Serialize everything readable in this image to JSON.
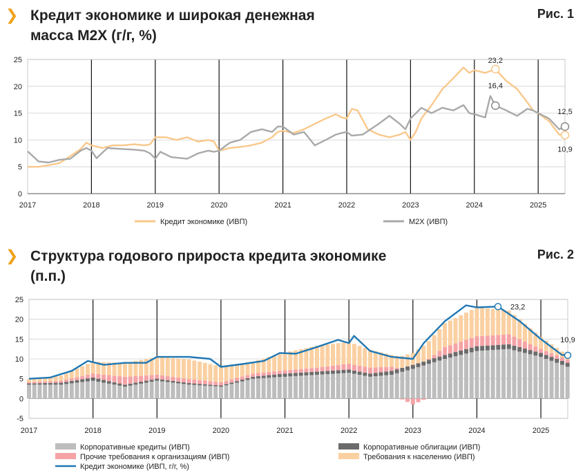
{
  "colors": {
    "credit": "#f9c88b",
    "m2x": "#a9a9a9",
    "corp_loans": "#bdbdbd",
    "corp_bonds": "#6b6b6b",
    "other_claims": "#f6a3a6",
    "household": "#fbd0a1",
    "credit_line": "#1f78b4",
    "accent": "#f0a21a"
  },
  "fig1": {
    "title_line1": "Кредит экономике и широкая денежная",
    "title_line2": "масса M2X (г/г, %)",
    "label": "Рис. 1",
    "legend": {
      "credit": "Кредит экономике (ИВП)",
      "m2x": "M2X (ИВП)"
    },
    "annotations": {
      "credit_peak": "23,2",
      "m2x_peak": "16,4",
      "m2x_last": "12,5",
      "credit_last": "10,9"
    }
  },
  "fig2": {
    "title_line1": "Структура годового прироста кредита экономике",
    "title_line2": "(п.п.)",
    "label": "Рис. 2",
    "legend": {
      "corp_loans": "Корпоративные кредиты (ИВП)",
      "corp_bonds": "Корпоративные облигации (ИВП)",
      "other_claims": "Прочие требования к организациям (ИВП)",
      "household": "Требования к населению (ИВП)",
      "credit_line": "Кредит экономике (ИВП, г/г, %)"
    },
    "annotations": {
      "credit_peak": "23,2",
      "credit_last": "10,9"
    }
  },
  "chart_data": [
    {
      "type": "line",
      "title": "Кредит экономике и широкая денежная масса M2X (г/г, %)",
      "xlabel": "",
      "ylabel": "",
      "ylim": [
        0,
        25
      ],
      "y_ticks": [
        0,
        5,
        10,
        15,
        20,
        25
      ],
      "x_ticks": [
        "2017",
        "2018",
        "2019",
        "2020",
        "2021",
        "2022",
        "2023",
        "2024",
        "2025"
      ],
      "x_range": [
        2017.0,
        2025.42
      ],
      "grid": "horizontal",
      "year_separators": true,
      "legend_position": "bottom",
      "series": [
        {
          "name": "Кредит экономике (ИВП)",
          "points": [
            [
              2017.0,
              5.0
            ],
            [
              2017.17,
              5.0
            ],
            [
              2017.33,
              5.3
            ],
            [
              2017.5,
              5.7
            ],
            [
              2017.67,
              7.0
            ],
            [
              2017.83,
              8.3
            ],
            [
              2017.92,
              9.5
            ],
            [
              2018.0,
              9.0
            ],
            [
              2018.17,
              8.5
            ],
            [
              2018.33,
              9.0
            ],
            [
              2018.5,
              9.0
            ],
            [
              2018.67,
              9.2
            ],
            [
              2018.83,
              9.0
            ],
            [
              2018.92,
              9.2
            ],
            [
              2019.0,
              10.5
            ],
            [
              2019.17,
              10.5
            ],
            [
              2019.33,
              10.0
            ],
            [
              2019.5,
              10.5
            ],
            [
              2019.67,
              9.7
            ],
            [
              2019.83,
              10.0
            ],
            [
              2019.92,
              9.7
            ],
            [
              2020.0,
              8.0
            ],
            [
              2020.17,
              8.5
            ],
            [
              2020.33,
              8.7
            ],
            [
              2020.5,
              9.0
            ],
            [
              2020.67,
              9.5
            ],
            [
              2020.83,
              10.5
            ],
            [
              2020.92,
              11.5
            ],
            [
              2021.0,
              11.7
            ],
            [
              2021.17,
              11.3
            ],
            [
              2021.33,
              12.0
            ],
            [
              2021.5,
              13.0
            ],
            [
              2021.67,
              14.0
            ],
            [
              2021.83,
              14.8
            ],
            [
              2021.92,
              14.2
            ],
            [
              2022.0,
              14.0
            ],
            [
              2022.08,
              15.8
            ],
            [
              2022.17,
              15.5
            ],
            [
              2022.33,
              12.0
            ],
            [
              2022.5,
              11.0
            ],
            [
              2022.67,
              10.5
            ],
            [
              2022.83,
              11.0
            ],
            [
              2022.92,
              11.5
            ],
            [
              2023.0,
              10.0
            ],
            [
              2023.08,
              11.5
            ],
            [
              2023.17,
              14.0
            ],
            [
              2023.33,
              16.5
            ],
            [
              2023.5,
              19.5
            ],
            [
              2023.67,
              21.5
            ],
            [
              2023.83,
              23.5
            ],
            [
              2023.92,
              22.5
            ],
            [
              2024.0,
              23.0
            ],
            [
              2024.17,
              22.5
            ],
            [
              2024.33,
              23.2
            ],
            [
              2024.5,
              21.0
            ],
            [
              2024.67,
              19.5
            ],
            [
              2024.83,
              17.0
            ],
            [
              2024.92,
              15.5
            ],
            [
              2025.0,
              15.0
            ],
            [
              2025.17,
              13.5
            ],
            [
              2025.33,
              11.0
            ],
            [
              2025.42,
              10.9
            ]
          ]
        },
        {
          "name": "M2X (ИВП)",
          "points": [
            [
              2017.0,
              7.9
            ],
            [
              2017.17,
              6.0
            ],
            [
              2017.33,
              5.8
            ],
            [
              2017.5,
              6.3
            ],
            [
              2017.67,
              6.5
            ],
            [
              2017.83,
              8.0
            ],
            [
              2017.92,
              8.5
            ],
            [
              2018.0,
              8.0
            ],
            [
              2018.08,
              6.6
            ],
            [
              2018.25,
              8.5
            ],
            [
              2018.5,
              8.3
            ],
            [
              2018.67,
              8.2
            ],
            [
              2018.83,
              8.0
            ],
            [
              2018.92,
              7.5
            ],
            [
              2019.0,
              6.5
            ],
            [
              2019.08,
              7.8
            ],
            [
              2019.25,
              6.8
            ],
            [
              2019.5,
              6.5
            ],
            [
              2019.67,
              7.5
            ],
            [
              2019.83,
              8.0
            ],
            [
              2019.92,
              7.8
            ],
            [
              2020.0,
              8.0
            ],
            [
              2020.17,
              9.5
            ],
            [
              2020.33,
              10.0
            ],
            [
              2020.5,
              11.5
            ],
            [
              2020.67,
              12.0
            ],
            [
              2020.83,
              11.5
            ],
            [
              2020.92,
              12.5
            ],
            [
              2021.0,
              12.5
            ],
            [
              2021.17,
              11.0
            ],
            [
              2021.33,
              11.5
            ],
            [
              2021.5,
              9.0
            ],
            [
              2021.67,
              10.0
            ],
            [
              2021.83,
              11.0
            ],
            [
              2021.92,
              11.3
            ],
            [
              2022.0,
              11.5
            ],
            [
              2022.08,
              10.8
            ],
            [
              2022.25,
              11.0
            ],
            [
              2022.5,
              13.0
            ],
            [
              2022.67,
              14.5
            ],
            [
              2022.83,
              13.0
            ],
            [
              2022.92,
              12.0
            ],
            [
              2023.0,
              14.0
            ],
            [
              2023.17,
              16.0
            ],
            [
              2023.33,
              15.0
            ],
            [
              2023.5,
              16.0
            ],
            [
              2023.67,
              15.5
            ],
            [
              2023.83,
              16.5
            ],
            [
              2023.92,
              15.0
            ],
            [
              2024.0,
              14.8
            ],
            [
              2024.17,
              14.2
            ],
            [
              2024.25,
              18.2
            ],
            [
              2024.33,
              16.4
            ],
            [
              2024.5,
              15.5
            ],
            [
              2024.67,
              14.5
            ],
            [
              2024.83,
              15.8
            ],
            [
              2024.92,
              15.5
            ],
            [
              2025.0,
              15.0
            ],
            [
              2025.17,
              14.0
            ],
            [
              2025.33,
              12.0
            ],
            [
              2025.42,
              12.5
            ]
          ]
        }
      ]
    },
    {
      "type": "bar",
      "title": "Структура годового прироста кредита экономике (п.п.)",
      "xlabel": "",
      "ylabel": "",
      "ylim": [
        -5,
        25
      ],
      "y_ticks": [
        -5,
        0,
        5,
        10,
        15,
        20,
        25
      ],
      "x_ticks": [
        "2017",
        "2018",
        "2019",
        "2020",
        "2021",
        "2022",
        "2023",
        "2024",
        "2025"
      ],
      "x_range": [
        2017.0,
        2025.42
      ],
      "stacked": true,
      "grid": "horizontal",
      "year_separators": true,
      "legend_position": "bottom",
      "series": [
        {
          "name": "Корпоративные кредиты (ИВП)",
          "points": [
            [
              2017.0,
              3.5
            ],
            [
              2017.5,
              3.5
            ],
            [
              2018.0,
              4.5
            ],
            [
              2018.5,
              3.0
            ],
            [
              2019.0,
              4.5
            ],
            [
              2019.5,
              3.5
            ],
            [
              2020.0,
              3.0
            ],
            [
              2020.5,
              5.0
            ],
            [
              2021.0,
              5.5
            ],
            [
              2021.5,
              6.0
            ],
            [
              2022.0,
              6.5
            ],
            [
              2022.33,
              5.5
            ],
            [
              2022.67,
              6.0
            ],
            [
              2023.0,
              7.5
            ],
            [
              2023.5,
              10.0
            ],
            [
              2024.0,
              12.0
            ],
            [
              2024.5,
              12.5
            ],
            [
              2025.0,
              10.5
            ],
            [
              2025.42,
              8.0
            ]
          ]
        },
        {
          "name": "Корпоративные облигации (ИВП)",
          "points": [
            [
              2017.0,
              0.3
            ],
            [
              2017.5,
              0.5
            ],
            [
              2018.0,
              0.8
            ],
            [
              2018.5,
              0.5
            ],
            [
              2019.0,
              0.5
            ],
            [
              2019.5,
              0.4
            ],
            [
              2020.0,
              0.3
            ],
            [
              2020.5,
              0.5
            ],
            [
              2021.0,
              0.8
            ],
            [
              2021.5,
              0.8
            ],
            [
              2022.0,
              0.8
            ],
            [
              2022.33,
              0.8
            ],
            [
              2022.67,
              1.0
            ],
            [
              2023.0,
              1.0
            ],
            [
              2023.5,
              1.0
            ],
            [
              2024.0,
              1.2
            ],
            [
              2024.5,
              1.2
            ],
            [
              2025.0,
              1.0
            ],
            [
              2025.42,
              1.0
            ]
          ]
        },
        {
          "name": "Прочие требования к организациям (ИВП)",
          "points": [
            [
              2017.0,
              0.3
            ],
            [
              2017.5,
              0.5
            ],
            [
              2018.0,
              1.0
            ],
            [
              2018.5,
              2.0
            ],
            [
              2019.0,
              1.0
            ],
            [
              2019.5,
              1.0
            ],
            [
              2020.0,
              0.8
            ],
            [
              2020.5,
              0.8
            ],
            [
              2021.0,
              0.8
            ],
            [
              2021.5,
              1.0
            ],
            [
              2022.0,
              1.5
            ],
            [
              2022.33,
              1.5
            ],
            [
              2022.67,
              1.0
            ],
            [
              2023.0,
              -1.5
            ],
            [
              2023.5,
              2.0
            ],
            [
              2024.0,
              2.5
            ],
            [
              2024.5,
              2.5
            ],
            [
              2025.0,
              1.0
            ],
            [
              2025.42,
              0.8
            ]
          ]
        },
        {
          "name": "Требования к населению (ИВП)",
          "points": [
            [
              2017.0,
              0.8
            ],
            [
              2017.5,
              1.3
            ],
            [
              2018.0,
              3.0
            ],
            [
              2018.5,
              3.5
            ],
            [
              2019.0,
              4.5
            ],
            [
              2019.5,
              5.0
            ],
            [
              2020.0,
              4.0
            ],
            [
              2020.5,
              3.0
            ],
            [
              2021.0,
              4.5
            ],
            [
              2021.5,
              5.5
            ],
            [
              2022.0,
              5.5
            ],
            [
              2022.33,
              4.5
            ],
            [
              2022.67,
              3.0
            ],
            [
              2023.0,
              3.0
            ],
            [
              2023.5,
              6.0
            ],
            [
              2024.0,
              7.3
            ],
            [
              2024.5,
              6.0
            ],
            [
              2025.0,
              3.0
            ],
            [
              2025.42,
              1.1
            ]
          ]
        },
        {
          "name": "Кредит экономике (ИВП, г/г, %)",
          "type": "line",
          "points": [
            [
              2017.0,
              5.0
            ],
            [
              2017.33,
              5.3
            ],
            [
              2017.67,
              7.0
            ],
            [
              2017.92,
              9.5
            ],
            [
              2018.17,
              8.5
            ],
            [
              2018.5,
              9.0
            ],
            [
              2018.83,
              9.0
            ],
            [
              2019.0,
              10.5
            ],
            [
              2019.5,
              10.5
            ],
            [
              2019.83,
              10.0
            ],
            [
              2020.0,
              8.0
            ],
            [
              2020.33,
              8.7
            ],
            [
              2020.67,
              9.5
            ],
            [
              2020.92,
              11.5
            ],
            [
              2021.17,
              11.3
            ],
            [
              2021.5,
              13.0
            ],
            [
              2021.83,
              14.8
            ],
            [
              2022.0,
              14.0
            ],
            [
              2022.08,
              15.8
            ],
            [
              2022.33,
              12.0
            ],
            [
              2022.67,
              10.5
            ],
            [
              2023.0,
              10.0
            ],
            [
              2023.17,
              14.0
            ],
            [
              2023.5,
              19.5
            ],
            [
              2023.83,
              23.5
            ],
            [
              2024.0,
              23.0
            ],
            [
              2024.33,
              23.2
            ],
            [
              2024.67,
              19.5
            ],
            [
              2025.0,
              15.0
            ],
            [
              2025.33,
              11.0
            ],
            [
              2025.42,
              10.9
            ]
          ]
        }
      ]
    }
  ]
}
